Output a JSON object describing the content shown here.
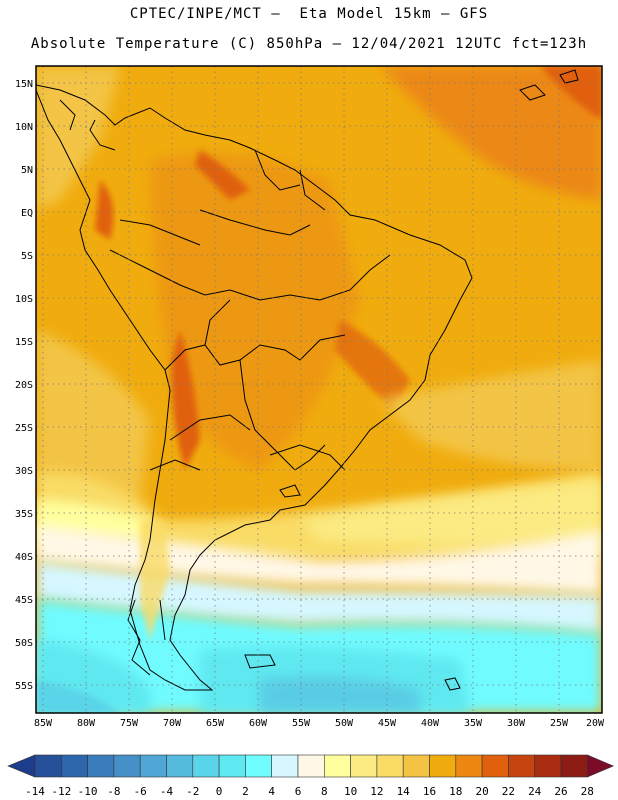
{
  "header": {
    "line1": "CPTEC/INPE/MCT –  Eta Model 15km – GFS",
    "line2": "Absolute Temperature (C) 850hPa – 12/04/2021 12UTC fct=123h"
  },
  "map": {
    "lat_labels": [
      "15N",
      "10N",
      "5N",
      "EQ",
      "5S",
      "10S",
      "15S",
      "20S",
      "25S",
      "30S",
      "35S",
      "40S",
      "45S",
      "50S",
      "55S"
    ],
    "lon_labels": [
      "85W",
      "80W",
      "75W",
      "70W",
      "65W",
      "60W",
      "55W",
      "50W",
      "45W",
      "40W",
      "35W",
      "30W",
      "25W",
      "20W"
    ]
  },
  "colorbar": {
    "labels": [
      "-14",
      "-12",
      "-10",
      "-8",
      "-6",
      "-4",
      "-2",
      "0",
      "2",
      "4",
      "6",
      "8",
      "10",
      "12",
      "14",
      "16",
      "18",
      "20",
      "22",
      "24",
      "26",
      "28"
    ],
    "colors": [
      "#1e3c8c",
      "#26509a",
      "#2e66ac",
      "#3a7cbc",
      "#4690c8",
      "#50a6d4",
      "#56bade",
      "#5ad4e8",
      "#5ee8f0",
      "#70fbff",
      "#d6f7ff",
      "#fff8e6",
      "#ffff9e",
      "#fbeb82",
      "#f9db66",
      "#f3c444",
      "#f0ac0e",
      "#ec8812",
      "#e0600e",
      "#c64410",
      "#aa2c10",
      "#8c1c14",
      "#7a0c28"
    ]
  }
}
